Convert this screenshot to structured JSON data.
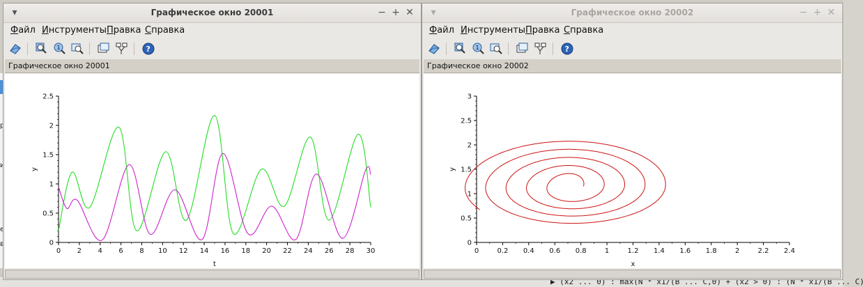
{
  "background": {
    "bottom_text": "▶ (x2 ... 0) : max(N * x1/(B ... C,0) + (x2 > 0) : (N * x1/(B ... C)",
    "left_fragments": [
      "р",
      "и",
      "е",
      "ве"
    ]
  },
  "menu": [
    "Файл",
    "Инструменты",
    "Правка",
    "Справка"
  ],
  "tool_icons": [
    "rotate-icon",
    "zoom-in-icon",
    "zoom-fit-icon",
    "zoom-area-icon",
    "datatip-icon",
    "edit-axes-icon",
    "help-icon"
  ],
  "windows": [
    {
      "title": "Графическое окно 20001",
      "figure_label": "Графическое окно 20001",
      "active": true
    },
    {
      "title": "Графическое окно 20002",
      "figure_label": "Графическое окно 20002",
      "active": false
    }
  ],
  "chart_data": [
    {
      "type": "line",
      "xlabel": "t",
      "ylabel": "y",
      "xlim": [
        0,
        30
      ],
      "ylim": [
        0,
        2.5
      ],
      "xticks": [
        0,
        2,
        4,
        6,
        8,
        10,
        12,
        14,
        16,
        18,
        20,
        22,
        24,
        26,
        28,
        30
      ],
      "yticks": [
        0,
        0.5,
        1,
        1.5,
        2,
        2.5
      ],
      "series": [
        {
          "color": "#22dd22",
          "x": [
            0,
            1.3,
            3,
            5.8,
            7.5,
            10.3,
            12.3,
            15,
            16.8,
            19.5,
            21.7,
            24.2,
            26,
            28.8,
            30
          ],
          "y": [
            0.2,
            1.2,
            0.6,
            1.97,
            0.2,
            1.55,
            0.38,
            2.17,
            0.15,
            1.25,
            0.62,
            1.8,
            0.38,
            1.85,
            0.6
          ]
        },
        {
          "color": "#cc22cc",
          "x": [
            0,
            0.8,
            1.8,
            4.2,
            6.8,
            8.8,
            11.2,
            13.8,
            15.8,
            18.2,
            20.5,
            22.8,
            24.8,
            27.3,
            29.5,
            30
          ],
          "y": [
            0.95,
            0.58,
            0.72,
            0.04,
            1.33,
            0.14,
            0.9,
            0.05,
            1.52,
            0.15,
            0.62,
            0.05,
            1.17,
            0.07,
            1.23,
            1.16
          ]
        }
      ]
    },
    {
      "type": "line",
      "xlabel": "x",
      "ylabel": "y",
      "xlim": [
        0,
        2.4
      ],
      "ylim": [
        0,
        3
      ],
      "xticks": [
        0,
        0.2,
        0.4,
        0.6,
        0.8,
        1,
        1.2,
        1.4,
        1.6,
        1.8,
        2,
        2.2,
        2.4
      ],
      "yticks": [
        0,
        0.5,
        1,
        1.5,
        2,
        2.5,
        3
      ],
      "series": [
        {
          "color": "#cc1111",
          "form": "spiral",
          "center": [
            0.72,
            1.15
          ],
          "start_radius": [
            0.1,
            0.22
          ],
          "end_radius": [
            0.82,
            0.98
          ],
          "turns": 4.6
        }
      ]
    }
  ]
}
